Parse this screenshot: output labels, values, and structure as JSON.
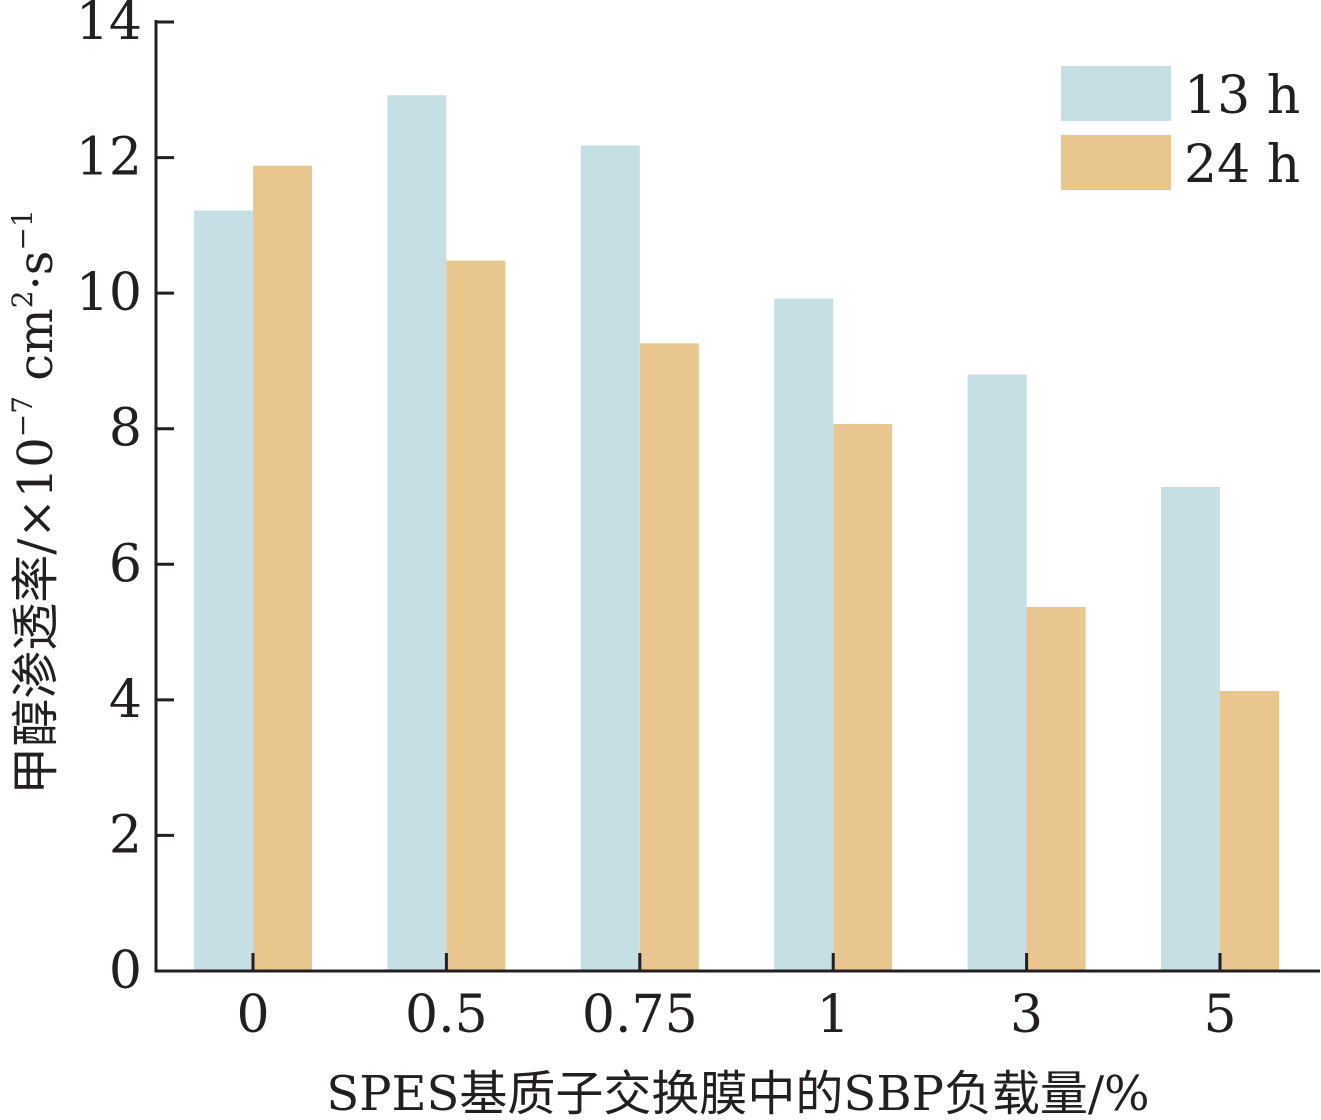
{
  "chart_data": {
    "type": "bar",
    "categories": [
      "0",
      "0.5",
      "0.75",
      "1",
      "3",
      "5"
    ],
    "series": [
      {
        "name": "13 h",
        "color": "#c6dfe4",
        "values": [
          11.22,
          12.92,
          12.18,
          9.92,
          8.8,
          7.14
        ]
      },
      {
        "name": "24 h",
        "color": "#e9c68d",
        "values": [
          11.88,
          10.48,
          9.26,
          8.07,
          5.37,
          4.13
        ]
      }
    ],
    "xlabel": "SPES基质子交换膜中的SBP负载量/%",
    "ylabel": {
      "main": "甲醇渗透率/×10",
      "exp1": "−7",
      "unit": " cm",
      "exp2": "2",
      "dot": "·s",
      "exp3": "−1"
    },
    "ylim": [
      0,
      14
    ],
    "yticks": [
      "0",
      "2",
      "4",
      "6",
      "8",
      "10",
      "12",
      "14"
    ],
    "legend_position": "top-right",
    "grid": false,
    "axis_color": "#231f20"
  }
}
